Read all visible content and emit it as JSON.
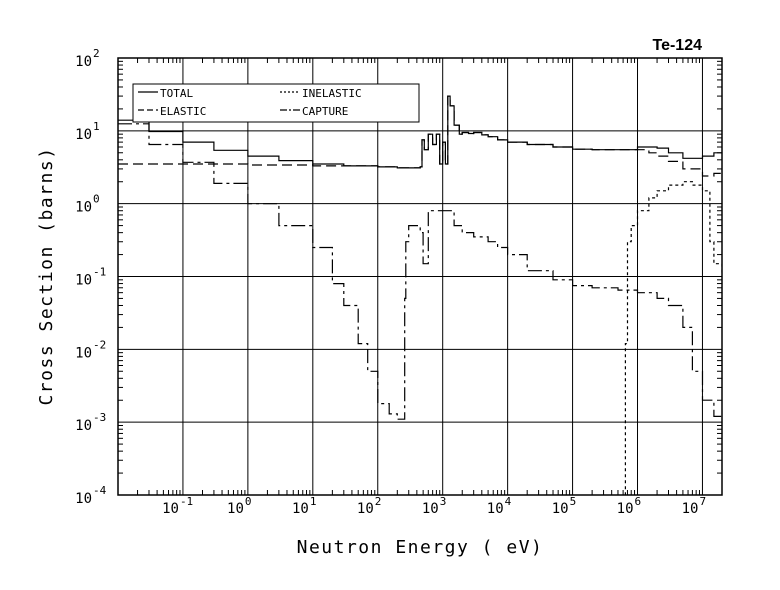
{
  "chart_data": {
    "type": "line",
    "title": "Te-124",
    "xlabel": "Neutron Energy ( eV)",
    "ylabel": "Cross Section (barns)",
    "x_scale": "log",
    "y_scale": "log",
    "xlim": [
      0.01,
      20000000
    ],
    "ylim": [
      0.0001,
      100
    ],
    "grid": true,
    "legend_position": "top-left",
    "x_ticks": [
      {
        "value": 0.1,
        "base": "10",
        "exp": "-1"
      },
      {
        "value": 1,
        "base": "10",
        "exp": "0"
      },
      {
        "value": 10,
        "base": "10",
        "exp": "1"
      },
      {
        "value": 100,
        "base": "10",
        "exp": "2"
      },
      {
        "value": 1000,
        "base": "10",
        "exp": "3"
      },
      {
        "value": 10000,
        "base": "10",
        "exp": "4"
      },
      {
        "value": 100000,
        "base": "10",
        "exp": "5"
      },
      {
        "value": 1000000,
        "base": "10",
        "exp": "6"
      },
      {
        "value": 10000000,
        "base": "10",
        "exp": "7"
      }
    ],
    "y_ticks": [
      {
        "value": 100,
        "base": "10",
        "exp": "2"
      },
      {
        "value": 10,
        "base": "10",
        "exp": "1"
      },
      {
        "value": 1,
        "base": "10",
        "exp": "0"
      },
      {
        "value": 0.1,
        "base": "10",
        "exp": "-1"
      },
      {
        "value": 0.01,
        "base": "10",
        "exp": "-2"
      },
      {
        "value": 0.001,
        "base": "10",
        "exp": "-3"
      },
      {
        "value": 0.0001,
        "base": "10",
        "exp": "-4"
      }
    ],
    "series": [
      {
        "name": "TOTAL",
        "dash": "none",
        "x": [
          0.01,
          0.03,
          0.1,
          0.3,
          1,
          3,
          10,
          30,
          100,
          200,
          300,
          450,
          480,
          520,
          600,
          700,
          800,
          900,
          1000,
          1100,
          1200,
          1300,
          1500,
          1800,
          2000,
          2500,
          3000,
          4000,
          5000,
          7000,
          10000,
          20000,
          50000,
          100000,
          200000,
          500000,
          1000000,
          2000000,
          3000000,
          5000000,
          10000000,
          15000000,
          20000000
        ],
        "y": [
          14.0,
          9.8,
          7.0,
          5.4,
          4.5,
          3.9,
          3.5,
          3.3,
          3.2,
          3.1,
          3.1,
          3.2,
          7.5,
          5.5,
          9.0,
          6.5,
          9.0,
          3.5,
          7.0,
          3.5,
          30.0,
          22.0,
          12.0,
          9.0,
          9.5,
          9.2,
          9.5,
          8.8,
          8.3,
          7.5,
          7.0,
          6.5,
          6.0,
          5.6,
          5.5,
          5.5,
          6.0,
          5.8,
          5.0,
          4.2,
          4.5,
          5.0,
          5.0
        ]
      },
      {
        "name": "ELASTIC",
        "dash": "10,5",
        "x": [
          0.01,
          0.1,
          1,
          10,
          100,
          200,
          300,
          450,
          480,
          520,
          600,
          700,
          800,
          900,
          1000,
          1100,
          1200,
          1300,
          1500,
          1800,
          2000,
          2500,
          3000,
          4000,
          5000,
          7000,
          10000,
          20000,
          50000,
          100000,
          200000,
          500000,
          1000000,
          1500000,
          2000000,
          3000000,
          5000000,
          10000000,
          15000000,
          20000000
        ],
        "y": [
          3.5,
          3.5,
          3.4,
          3.3,
          3.2,
          3.1,
          3.1,
          3.2,
          7.5,
          5.5,
          9.0,
          6.5,
          9.0,
          3.5,
          7.0,
          3.5,
          30.0,
          22.0,
          12.0,
          9.0,
          9.5,
          9.2,
          9.5,
          8.8,
          8.3,
          7.5,
          7.0,
          6.5,
          6.0,
          5.6,
          5.5,
          5.5,
          5.5,
          5.0,
          4.5,
          3.8,
          3.0,
          2.4,
          2.6,
          3.0
        ]
      },
      {
        "name": "INELASTIC",
        "dash": "3,3",
        "x": [
          600000,
          650000,
          700000,
          800000,
          1000000,
          1500000,
          2000000,
          3000000,
          5000000,
          7000000,
          10000000,
          13000000,
          15000000,
          20000000
        ],
        "y": [
          0.0,
          0.012,
          0.3,
          0.5,
          0.8,
          1.2,
          1.5,
          1.8,
          2.0,
          1.8,
          1.5,
          0.3,
          0.15,
          0.1
        ]
      },
      {
        "name": "CAPTURE",
        "dash": "14,4,3,4",
        "x": [
          0.01,
          0.03,
          0.1,
          0.3,
          1,
          3,
          10,
          20,
          30,
          50,
          70,
          100,
          150,
          200,
          250,
          260,
          270,
          300,
          350,
          400,
          450,
          500,
          600,
          700,
          800,
          900,
          1000,
          1500,
          2000,
          3000,
          5000,
          7000,
          10000,
          20000,
          50000,
          100000,
          200000,
          500000,
          1000000,
          2000000,
          3000000,
          5000000,
          7000000,
          10000000,
          15000000,
          20000000
        ],
        "y": [
          12.5,
          6.5,
          3.7,
          1.9,
          1.0,
          0.5,
          0.25,
          0.08,
          0.04,
          0.012,
          0.005,
          0.0018,
          0.0013,
          0.0011,
          0.0011,
          0.05,
          0.3,
          0.5,
          0.5,
          0.5,
          0.4,
          0.15,
          0.8,
          0.8,
          0.8,
          0.8,
          0.8,
          0.5,
          0.4,
          0.35,
          0.3,
          0.25,
          0.2,
          0.12,
          0.09,
          0.075,
          0.07,
          0.065,
          0.06,
          0.05,
          0.04,
          0.02,
          0.005,
          0.002,
          0.0012,
          0.0011
        ]
      }
    ]
  }
}
